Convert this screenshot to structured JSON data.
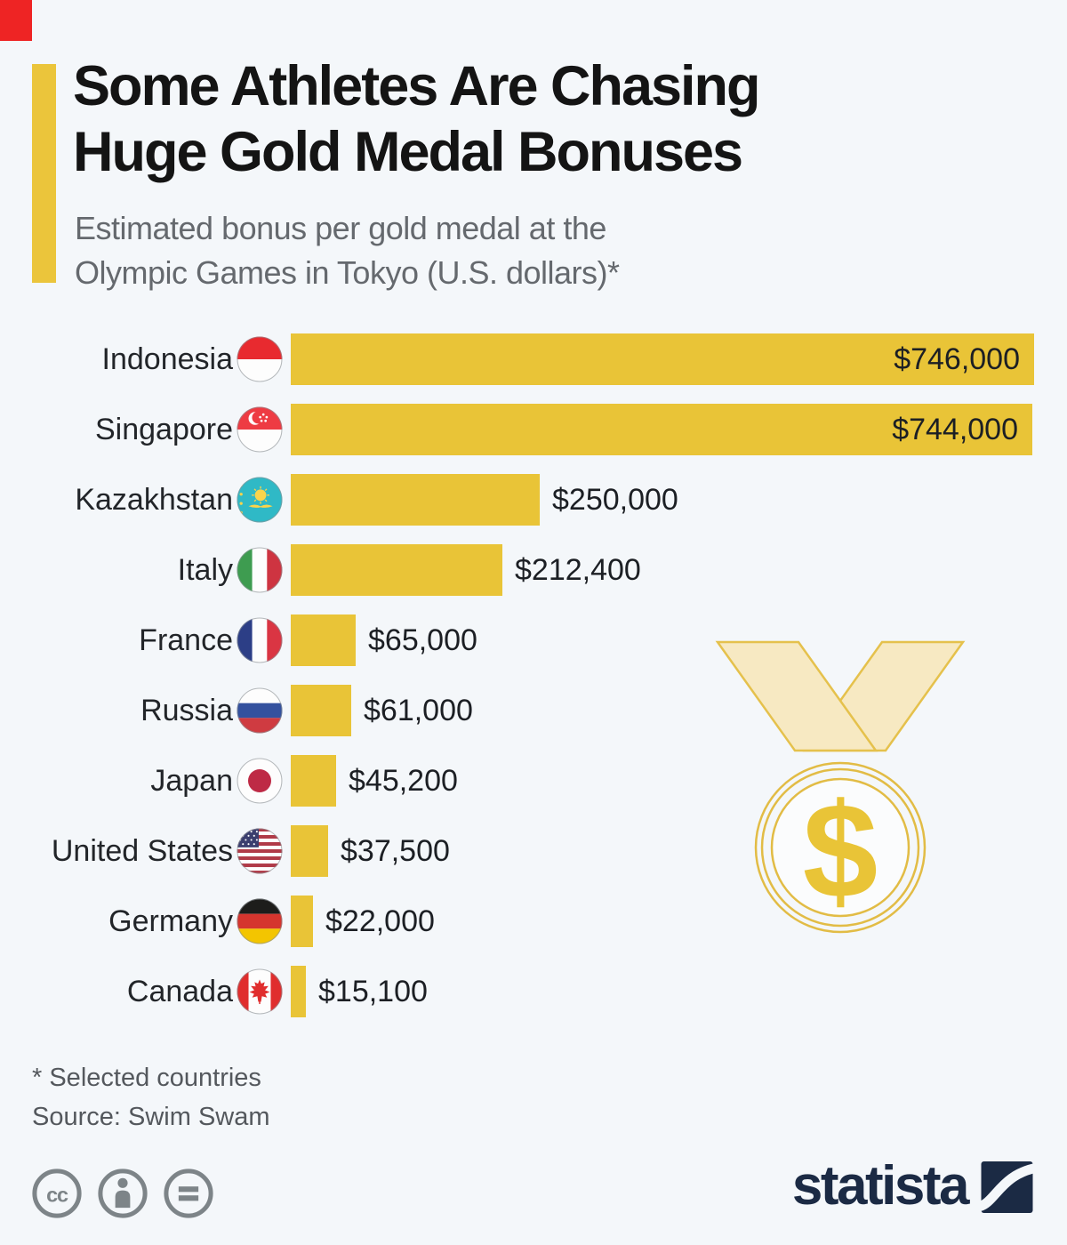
{
  "header": {
    "title_line1": "Some Athletes Are Chasing",
    "title_line2": "Huge Gold Medal Bonuses",
    "subtitle_line1": "Estimated bonus per gold medal at the",
    "subtitle_line2": "Olympic Games in Tokyo (U.S. dollars)*"
  },
  "chart_data": {
    "type": "bar",
    "orientation": "horizontal",
    "title": "Some Athletes Are Chasing Huge Gold Medal Bonuses",
    "subtitle": "Estimated bonus per gold medal at the Olympic Games in Tokyo (U.S. dollars)*",
    "categories": [
      "Indonesia",
      "Singapore",
      "Kazakhstan",
      "Italy",
      "France",
      "Russia",
      "Japan",
      "United States",
      "Germany",
      "Canada"
    ],
    "values": [
      746000,
      744000,
      250000,
      212400,
      65000,
      61000,
      45200,
      37500,
      22000,
      15100
    ],
    "value_labels": [
      "$746,000",
      "$744,000",
      "$250,000",
      "$212,400",
      "$65,000",
      "$61,000",
      "$45,200",
      "$37,500",
      "$22,000",
      "$15,100"
    ],
    "flag_icons": [
      "indonesia-flag-icon",
      "singapore-flag-icon",
      "kazakhstan-flag-icon",
      "italy-flag-icon",
      "france-flag-icon",
      "russia-flag-icon",
      "japan-flag-icon",
      "united-states-flag-icon",
      "germany-flag-icon",
      "canada-flag-icon"
    ],
    "bar_color": "#E9C437",
    "xlim": [
      0,
      746000
    ],
    "grid": false,
    "legend": "none"
  },
  "decoration": {
    "medal_dollar_sign": "$"
  },
  "footer": {
    "footnote": "* Selected countries",
    "source": "Source: Swim Swam",
    "license_icons": [
      "cc-icon",
      "attribution-icon",
      "equals-icon"
    ],
    "logo_text": "statista"
  },
  "colors": {
    "background": "#F4F7FA",
    "bar_gold": "#E9C437",
    "accent_gold": "#EBC53B",
    "title_text": "#141414",
    "subtitle_text": "#65696E",
    "label_text": "#222529",
    "footnote_text": "#54585D",
    "license_gray": "#7D8488",
    "statista_navy": "#1B2A44",
    "medal_ribbon_fill": "#F7E9C2",
    "medal_outline": "#E2BC45"
  }
}
